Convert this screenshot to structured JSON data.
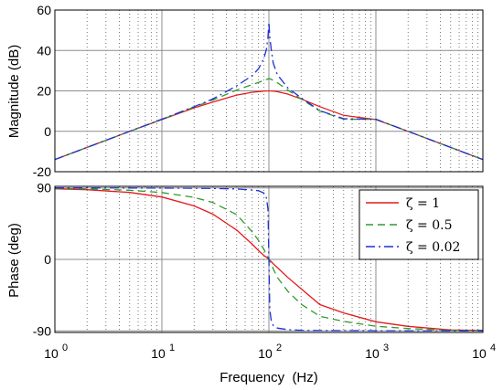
{
  "chart_data": [
    {
      "type": "line",
      "panel": "magnitude",
      "ylabel": "Magnitude (dB)",
      "xscale": "log",
      "xlim": [
        1,
        10000
      ],
      "ylim": [
        -20,
        60
      ],
      "yticks": [
        "60",
        "40",
        "20",
        "0",
        "-20"
      ],
      "grid": true,
      "x": [
        1,
        2,
        5,
        10,
        20,
        30,
        50,
        70,
        80,
        90,
        95,
        98,
        100,
        102,
        105,
        110,
        120,
        150,
        200,
        300,
        500,
        1000,
        2000,
        5000,
        10000
      ],
      "series": [
        {
          "name": "ζ = 1",
          "color": "#e41a1c",
          "dash": "solid",
          "values": [
            -14.0,
            -8.0,
            -0.04,
            5.8,
            11.6,
            14.5,
            17.9,
            19.3,
            19.6,
            19.9,
            19.97,
            19.99,
            20.0,
            19.99,
            19.97,
            19.9,
            19.6,
            18.4,
            16.0,
            12.2,
            7.9,
            5.8,
            -0.04,
            -8.0,
            -14.0
          ]
        },
        {
          "name": "ζ = 0.5",
          "color": "#2e9b2e",
          "dash": "8 5",
          "values": [
            -14.0,
            -8.0,
            -0.04,
            5.9,
            12.0,
            15.5,
            20.4,
            23.1,
            24.2,
            25.2,
            25.6,
            25.9,
            26.0,
            25.9,
            25.7,
            25.2,
            24.0,
            20.4,
            16.0,
            10.0,
            6.0,
            5.9,
            -0.04,
            -8.0,
            -14.0
          ]
        },
        {
          "name": "ζ = 0.02",
          "color": "#1e2fd6",
          "dash": "10 4 2 4",
          "values": [
            -14.0,
            -8.0,
            -0.04,
            6.0,
            12.2,
            16.0,
            22.5,
            27.6,
            31.0,
            36.1,
            40.8,
            46.6,
            54.0,
            46.8,
            40.8,
            33.7,
            28.0,
            21.5,
            16.6,
            10.2,
            6.2,
            6.0,
            -0.04,
            -8.0,
            -14.0
          ]
        }
      ]
    },
    {
      "type": "line",
      "panel": "phase",
      "ylabel": "Phase (deg)",
      "xlabel": "Frequency  (Hz)",
      "xscale": "log",
      "xlim": [
        1,
        10000
      ],
      "ylim": [
        -92,
        92
      ],
      "yticks": [
        "90",
        "0",
        "-90"
      ],
      "xticks": [
        "10",
        "10",
        "10",
        "10",
        "10"
      ],
      "xtick_exponents": [
        "0",
        "1",
        "2",
        "3",
        "4"
      ],
      "grid": true,
      "legend_position": "right",
      "x": [
        1,
        2,
        5,
        10,
        20,
        30,
        50,
        70,
        80,
        90,
        95,
        98,
        100,
        102,
        105,
        110,
        120,
        150,
        200,
        300,
        500,
        1000,
        2000,
        5000,
        10000
      ],
      "series": [
        {
          "name": "ζ = 1",
          "color": "#e41a1c",
          "dash": "solid",
          "values": [
            88.9,
            87.7,
            84.3,
            78.6,
            67.4,
            56.9,
            36.9,
            19.0,
            11.0,
            4.8,
            2.7,
            1.2,
            0.0,
            -1.2,
            -2.8,
            -5.5,
            -10.4,
            -22.6,
            -36.9,
            -56.9,
            -67.4,
            -78.6,
            -84.3,
            -88.9,
            -89.4
          ]
        },
        {
          "name": "ζ = 0.5",
          "color": "#2e9b2e",
          "dash": "8 5",
          "values": [
            89.4,
            88.8,
            87.1,
            84.2,
            78.1,
            71.7,
            56.3,
            34.5,
            23.9,
            12.5,
            6.0,
            2.7,
            0.0,
            -2.3,
            -5.0,
            -12.0,
            -22.8,
            -40.0,
            -56.3,
            -71.7,
            -78.1,
            -84.2,
            -87.1,
            -89.4,
            -89.7
          ]
        },
        {
          "name": "ζ = 0.02",
          "color": "#1e2fd6",
          "dash": "10 4 2 4",
          "values": [
            90.0,
            90.0,
            89.9,
            89.8,
            89.6,
            89.4,
            88.7,
            87.4,
            86.5,
            83.5,
            77.0,
            63.0,
            0.0,
            -63.0,
            -76.5,
            -83.3,
            -86.5,
            -88.4,
            -89.3,
            -89.6,
            -89.7,
            -89.8,
            -89.9,
            -90.0,
            -90.0
          ]
        }
      ]
    }
  ]
}
